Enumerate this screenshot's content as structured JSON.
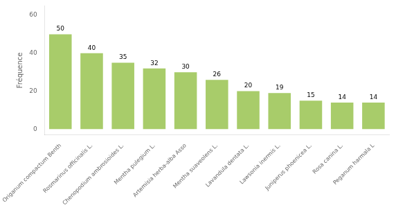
{
  "chart_data": {
    "type": "bar",
    "categories": [
      "Origanum compactum Benth",
      "Rosmarinus officinalis L.",
      "Chenopodium ambrosioides L.",
      "Mentha pulegium L.",
      "Artemisia herba-alba Asso",
      "Mentha suaveolens L.",
      "Lavandula dentata L.",
      "Lawsonia inermis L.",
      "Juniperus phoenicea L.",
      "Rosa canina L.",
      "Peganum harmala L"
    ],
    "values": [
      50,
      40,
      35,
      32,
      30,
      26,
      20,
      19,
      15,
      14,
      14
    ],
    "color": "#a8cc6a",
    "ylabel": "Fréquence",
    "ylim": [
      -3,
      65
    ],
    "yticks": [
      0,
      20,
      40,
      60
    ],
    "grid": false,
    "data_labels": true
  }
}
